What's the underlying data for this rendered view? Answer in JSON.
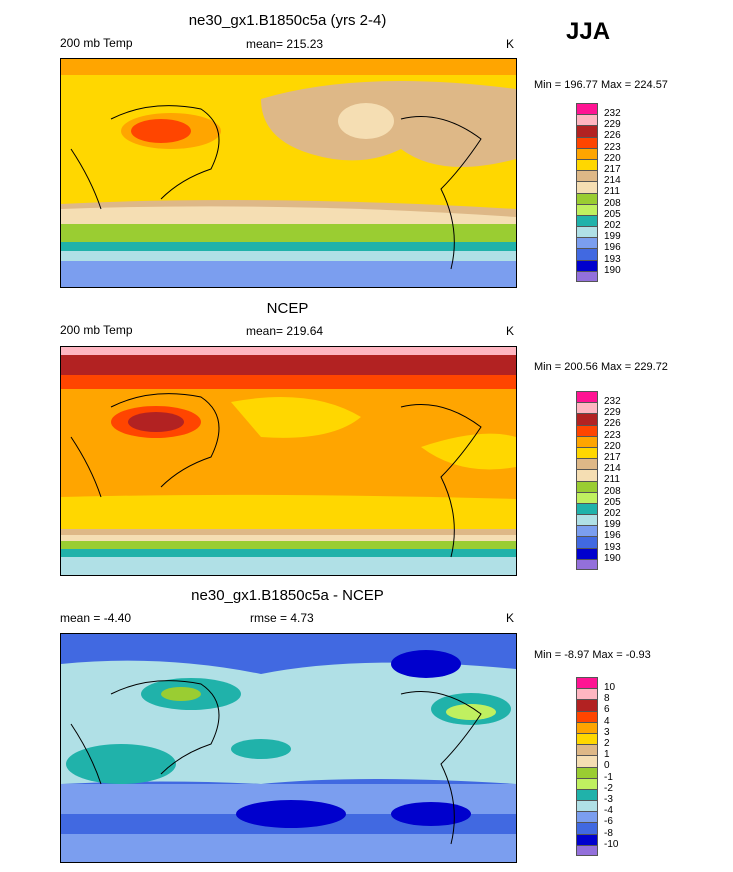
{
  "season": "JJA",
  "palette": [
    "#ff1493",
    "#ffb6c1",
    "#b22222",
    "#ff4500",
    "#ffa500",
    "#ffd700",
    "#deb887",
    "#f5deb3",
    "#9acd32",
    "#c0f060",
    "#20b2aa",
    "#b0e0e6",
    "#7b9eef",
    "#4169e1",
    "#0000cd",
    "#9370db"
  ],
  "panels": [
    {
      "title": "ne30_gx1.B1850c5a (yrs 2-4)",
      "left": "200 mb Temp",
      "center": "mean= 215.23",
      "right": "K",
      "minmax": "Min = 196.77 Max = 224.57",
      "levels": [
        "232",
        "229",
        "226",
        "223",
        "220",
        "217",
        "214",
        "211",
        "208",
        "205",
        "202",
        "199",
        "196",
        "193",
        "190"
      ]
    },
    {
      "title": "NCEP",
      "left": "200 mb Temp",
      "center": "mean= 219.64",
      "right": "K",
      "minmax": "Min = 200.56 Max = 229.72",
      "levels": [
        "232",
        "229",
        "226",
        "223",
        "220",
        "217",
        "214",
        "211",
        "208",
        "205",
        "202",
        "199",
        "196",
        "193",
        "190"
      ]
    },
    {
      "title": "ne30_gx1.B1850c5a - NCEP",
      "left": "mean =  -4.40",
      "center": "rmse =   4.73",
      "right": "K",
      "minmax": "Min =  -8.97 Max =  -0.93",
      "levels": [
        "10",
        "8",
        "6",
        "4",
        "3",
        "2",
        "1",
        "0",
        "-1",
        "-2",
        "-3",
        "-4",
        "-6",
        "-8",
        "-10"
      ]
    }
  ]
}
